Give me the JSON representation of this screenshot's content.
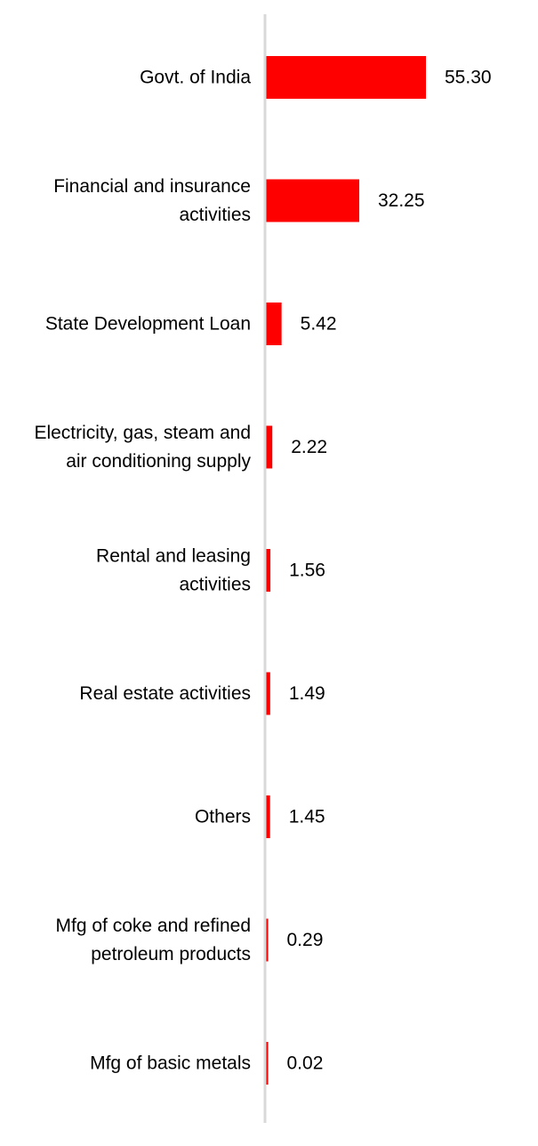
{
  "chart_data": {
    "type": "bar",
    "orientation": "horizontal",
    "categories": [
      "Govt. of India",
      "Financial and insurance activities",
      "State Development Loan",
      "Electricity, gas, steam and air conditioning supply",
      "Rental and leasing activities",
      "Real estate activities",
      "Others",
      "Mfg of coke and refined petroleum products",
      "Mfg of basic metals"
    ],
    "category_label_lines": [
      [
        "Govt. of India"
      ],
      [
        "Financial and insurance",
        "activities"
      ],
      [
        "State Development Loan"
      ],
      [
        "Electricity, gas, steam and",
        "air conditioning supply"
      ],
      [
        "Rental and leasing",
        "activities"
      ],
      [
        "Real estate activities"
      ],
      [
        "Others"
      ],
      [
        "Mfg of coke and refined",
        "petroleum products"
      ],
      [
        "Mfg of basic metals"
      ]
    ],
    "values": [
      55.3,
      32.25,
      5.42,
      2.22,
      1.56,
      1.49,
      1.45,
      0.29,
      0.02
    ],
    "value_labels": [
      "55.30",
      "32.25",
      "5.42",
      "2.22",
      "1.56",
      "1.49",
      "1.45",
      "0.29",
      "0.02"
    ],
    "title": "",
    "xlabel": "",
    "ylabel": "",
    "xlim": [
      0,
      100
    ],
    "grid": false,
    "legend": "none",
    "bar_color": "#ff0000",
    "axis_color": "#d9d9d9"
  }
}
